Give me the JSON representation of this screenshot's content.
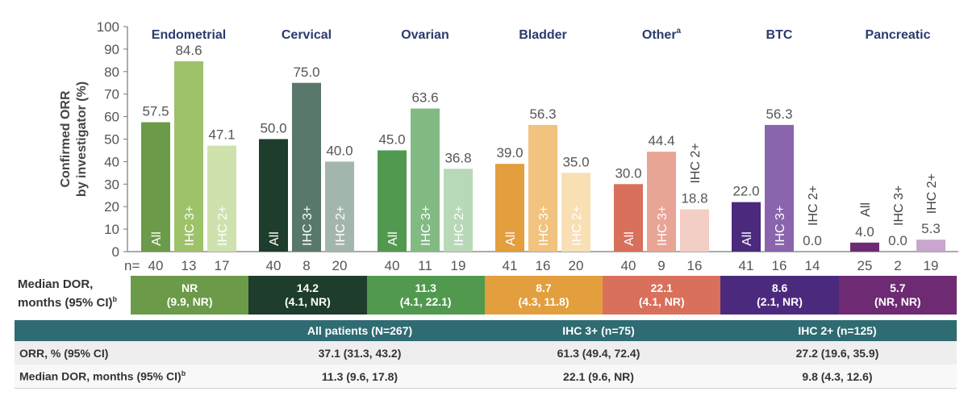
{
  "chart_data": {
    "type": "bar",
    "ylabel": "Confirmed ORR by investigator (%)",
    "ylim": [
      0,
      100
    ],
    "yticks": [
      "0",
      "10",
      "20",
      "30",
      "40",
      "50",
      "60",
      "70",
      "80",
      "90",
      "100"
    ],
    "n_prefix": "n=",
    "groups": [
      {
        "title": "Endometrial",
        "sup": "",
        "bars": [
          {
            "label": "All",
            "value": "57.5",
            "n": "40",
            "color": "#6b9a49"
          },
          {
            "label": "IHC 3+",
            "value": "84.6",
            "n": "13",
            "color": "#9dc26a"
          },
          {
            "label": "IHC 2+",
            "value": "47.1",
            "n": "17",
            "color": "#cfe2ae"
          }
        ]
      },
      {
        "title": "Cervical",
        "sup": "",
        "bars": [
          {
            "label": "All",
            "value": "50.0",
            "n": "40",
            "color": "#1e3d2c"
          },
          {
            "label": "IHC 3+",
            "value": "75.0",
            "n": "8",
            "color": "#57786a"
          },
          {
            "label": "IHC 2+",
            "value": "40.0",
            "n": "20",
            "color": "#a3b6ab"
          }
        ]
      },
      {
        "title": "Ovarian",
        "sup": "",
        "bars": [
          {
            "label": "All",
            "value": "45.0",
            "n": "40",
            "color": "#51994f"
          },
          {
            "label": "IHC 3+",
            "value": "63.6",
            "n": "11",
            "color": "#82ba83"
          },
          {
            "label": "IHC 2+",
            "value": "36.8",
            "n": "19",
            "color": "#b8d9b7"
          }
        ]
      },
      {
        "title": "Bladder",
        "sup": "",
        "bars": [
          {
            "label": "All",
            "value": "39.0",
            "n": "41",
            "color": "#e39e3e"
          },
          {
            "label": "IHC 3+",
            "value": "56.3",
            "n": "16",
            "color": "#f1c37f"
          },
          {
            "label": "IHC 2+",
            "value": "35.0",
            "n": "20",
            "color": "#f8dfb4"
          }
        ]
      },
      {
        "title": "Other",
        "sup": "a",
        "bars": [
          {
            "label": "All",
            "value": "30.0",
            "n": "40",
            "color": "#d8705b"
          },
          {
            "label": "IHC 3+",
            "value": "44.4",
            "n": "9",
            "color": "#e8a494"
          },
          {
            "label": "IHC 2+",
            "value": "18.8",
            "n": "16",
            "color": "#f3cec5"
          }
        ]
      },
      {
        "title": "BTC",
        "sup": "",
        "bars": [
          {
            "label": "All",
            "value": "22.0",
            "n": "41",
            "color": "#4b2a7e"
          },
          {
            "label": "IHC 3+",
            "value": "56.3",
            "n": "16",
            "color": "#8a64ad"
          },
          {
            "label": "IHC 2+",
            "value": "0.0",
            "n": "14",
            "color": "#c3b2da"
          }
        ]
      },
      {
        "title": "Pancreatic",
        "sup": "",
        "bars": [
          {
            "label": "All",
            "value": "4.0",
            "n": "25",
            "color": "#6e2b73"
          },
          {
            "label": "IHC 3+",
            "value": "0.0",
            "n": "2",
            "color": "#a46aa8"
          },
          {
            "label": "IHC 2+",
            "value": "5.3",
            "n": "19",
            "color": "#c8a6cd"
          }
        ]
      }
    ]
  },
  "dor": {
    "label": "Median DOR, months (95% CI)",
    "label_sup": "b",
    "cells": [
      {
        "value": "NR",
        "ci": "(9.9, NR)",
        "color": "#6b9a49"
      },
      {
        "value": "14.2",
        "ci": "(4.1, NR)",
        "color": "#1e3d2c"
      },
      {
        "value": "11.3",
        "ci": "(4.1, 22.1)",
        "color": "#51994f"
      },
      {
        "value": "8.7",
        "ci": "(4.3, 11.8)",
        "color": "#e39e3e"
      },
      {
        "value": "22.1",
        "ci": "(4.1, NR)",
        "color": "#d8705b"
      },
      {
        "value": "8.6",
        "ci": "(2.1, NR)",
        "color": "#4b2a7e"
      },
      {
        "value": "5.7",
        "ci": "(NR, NR)",
        "color": "#6e2b73"
      }
    ]
  },
  "summary": {
    "headers": [
      "",
      "All patients (N=267)",
      "IHC 3+ (n=75)",
      "IHC 2+ (n=125)"
    ],
    "orr_label": "ORR, % (95% CI)",
    "orr": [
      "37.1 (31.3, 43.2)",
      "61.3 (49.4, 72.4)",
      "27.2 (19.6, 35.9)"
    ],
    "dor_label": "Median DOR, months (95% CI)",
    "dor_label_sup": "b",
    "dor": [
      "11.3 (9.6, 17.8)",
      "22.1 (9.6, NR)",
      "9.8 (4.3, 12.6)"
    ]
  }
}
